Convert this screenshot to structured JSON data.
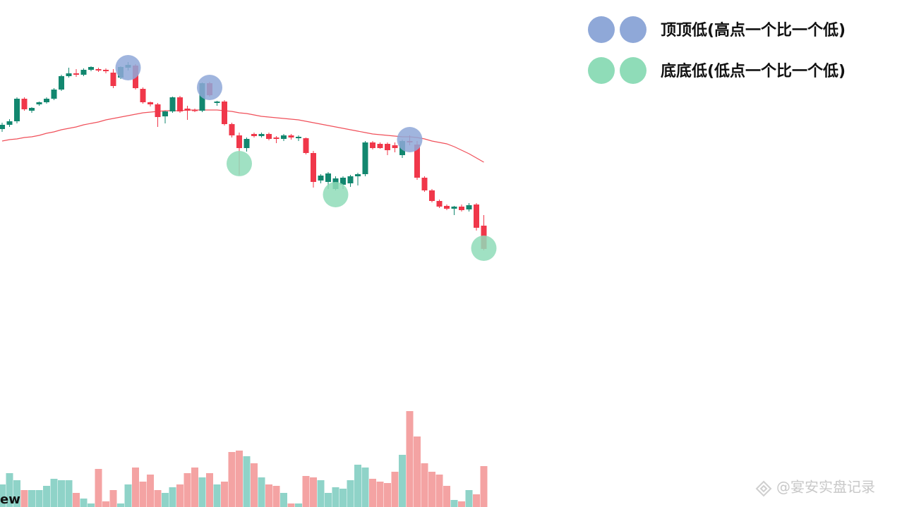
{
  "chart_data": {
    "type": "candlestick",
    "up_color": "#12876f",
    "down_color": "#f0374a",
    "ylim": [
      0,
      400
    ],
    "ohlc": [
      [
        217,
        226,
        213,
        223
      ],
      [
        223,
        231,
        220,
        228
      ],
      [
        228,
        262,
        225,
        260
      ],
      [
        260,
        262,
        243,
        245
      ],
      [
        243,
        248,
        240,
        247
      ],
      [
        252,
        256,
        250,
        255
      ],
      [
        255,
        262,
        253,
        260
      ],
      [
        260,
        275,
        258,
        273
      ],
      [
        273,
        294,
        271,
        292
      ],
      [
        292,
        304,
        290,
        296
      ],
      [
        296,
        302,
        291,
        294
      ],
      [
        294,
        303,
        292,
        301
      ],
      [
        301,
        306,
        299,
        305
      ],
      [
        302,
        304,
        298,
        300
      ],
      [
        301,
        303,
        296,
        299
      ],
      [
        297,
        302,
        275,
        278
      ],
      [
        290,
        306,
        288,
        305
      ],
      [
        304,
        312,
        300,
        308
      ],
      [
        307,
        309,
        273,
        275
      ],
      [
        274,
        276,
        253,
        255
      ],
      [
        255,
        256,
        249,
        252
      ],
      [
        252,
        254,
        220,
        234
      ],
      [
        235,
        243,
        225,
        242
      ],
      [
        242,
        263,
        240,
        262
      ],
      [
        262,
        264,
        240,
        242
      ],
      [
        246,
        250,
        230,
        243
      ],
      [
        244,
        246,
        241,
        243
      ],
      [
        243,
        283,
        241,
        282
      ],
      [
        282,
        284,
        263,
        265
      ],
      [
        254,
        257,
        250,
        256
      ],
      [
        256,
        258,
        222,
        224
      ],
      [
        224,
        226,
        205,
        208
      ],
      [
        208,
        212,
        152,
        190
      ],
      [
        190,
        205,
        185,
        203
      ],
      [
        210,
        212,
        205,
        207
      ],
      [
        207,
        212,
        205,
        210
      ],
      [
        210,
        212,
        201,
        203
      ],
      [
        205,
        207,
        197,
        203
      ],
      [
        203,
        210,
        200,
        208
      ],
      [
        208,
        210,
        202,
        205
      ],
      [
        204,
        208,
        200,
        206
      ],
      [
        204,
        205,
        181,
        183
      ],
      [
        183,
        186,
        134,
        142
      ],
      [
        144,
        153,
        140,
        151
      ],
      [
        142,
        156,
        132,
        154
      ],
      [
        132,
        150,
        130,
        147
      ],
      [
        138,
        150,
        132,
        148
      ],
      [
        140,
        152,
        135,
        150
      ],
      [
        150,
        155,
        137,
        153
      ],
      [
        153,
        200,
        150,
        198
      ],
      [
        198,
        200,
        188,
        190
      ],
      [
        196,
        198,
        189,
        190
      ],
      [
        196,
        198,
        180,
        187
      ],
      [
        194,
        198,
        184,
        190
      ],
      [
        180,
        202,
        176,
        200
      ],
      [
        200,
        208,
        194,
        198
      ],
      [
        195,
        200,
        145,
        148
      ],
      [
        148,
        150,
        128,
        130
      ],
      [
        130,
        132,
        113,
        115
      ],
      [
        115,
        117,
        105,
        107
      ],
      [
        108,
        110,
        102,
        104
      ],
      [
        104,
        108,
        95,
        107
      ],
      [
        107,
        110,
        100,
        102
      ],
      [
        103,
        112,
        100,
        109
      ],
      [
        110,
        112,
        73,
        77
      ],
      [
        80,
        95,
        45,
        47
      ]
    ],
    "moving_average": {
      "color": "#f0505a",
      "values": [
        200,
        202,
        203,
        205,
        206,
        208,
        211,
        213,
        216,
        218,
        220,
        223,
        225,
        227,
        230,
        232,
        234,
        236,
        238,
        240,
        241,
        242,
        243,
        243,
        243,
        244,
        244,
        244,
        244,
        244,
        243,
        242,
        240,
        239,
        237,
        235,
        234,
        233,
        232,
        231,
        230,
        228,
        226,
        224,
        222,
        220,
        218,
        216,
        214,
        212,
        210,
        209,
        208,
        207,
        206,
        206,
        205,
        203,
        200,
        198,
        196,
        192,
        187,
        182,
        176,
        170
      ]
    },
    "volume": {
      "ylim": [
        0,
        140
      ],
      "up_color": "#8fd3c8",
      "down_color": "#f4a3a3",
      "values": [
        32,
        48,
        38,
        24,
        24,
        24,
        30,
        40,
        38,
        38,
        20,
        12,
        5,
        54,
        8,
        24,
        5,
        32,
        56,
        36,
        46,
        24,
        20,
        28,
        32,
        48,
        56,
        42,
        48,
        32,
        36,
        78,
        80,
        72,
        62,
        42,
        32,
        30,
        20,
        5,
        5,
        44,
        42,
        38,
        20,
        28,
        26,
        38,
        60,
        56,
        40,
        36,
        34,
        50,
        74,
        136,
        100,
        62,
        50,
        46,
        30,
        10,
        8,
        24,
        18,
        58
      ]
    },
    "markers": [
      {
        "name": "顶顶低(高点一个比一个低)",
        "color": "#8fa8d8",
        "x": [
          17,
          28,
          55
        ],
        "values": [
          304,
          276,
          202
        ]
      },
      {
        "name": "底底低(低点一个比一个低)",
        "color": "#8fdcb8",
        "x": [
          32,
          45,
          65
        ],
        "values": [
          168,
          124,
          48
        ]
      }
    ],
    "logo_fragment": "ew",
    "watermark": "@宴安实盘记录"
  }
}
